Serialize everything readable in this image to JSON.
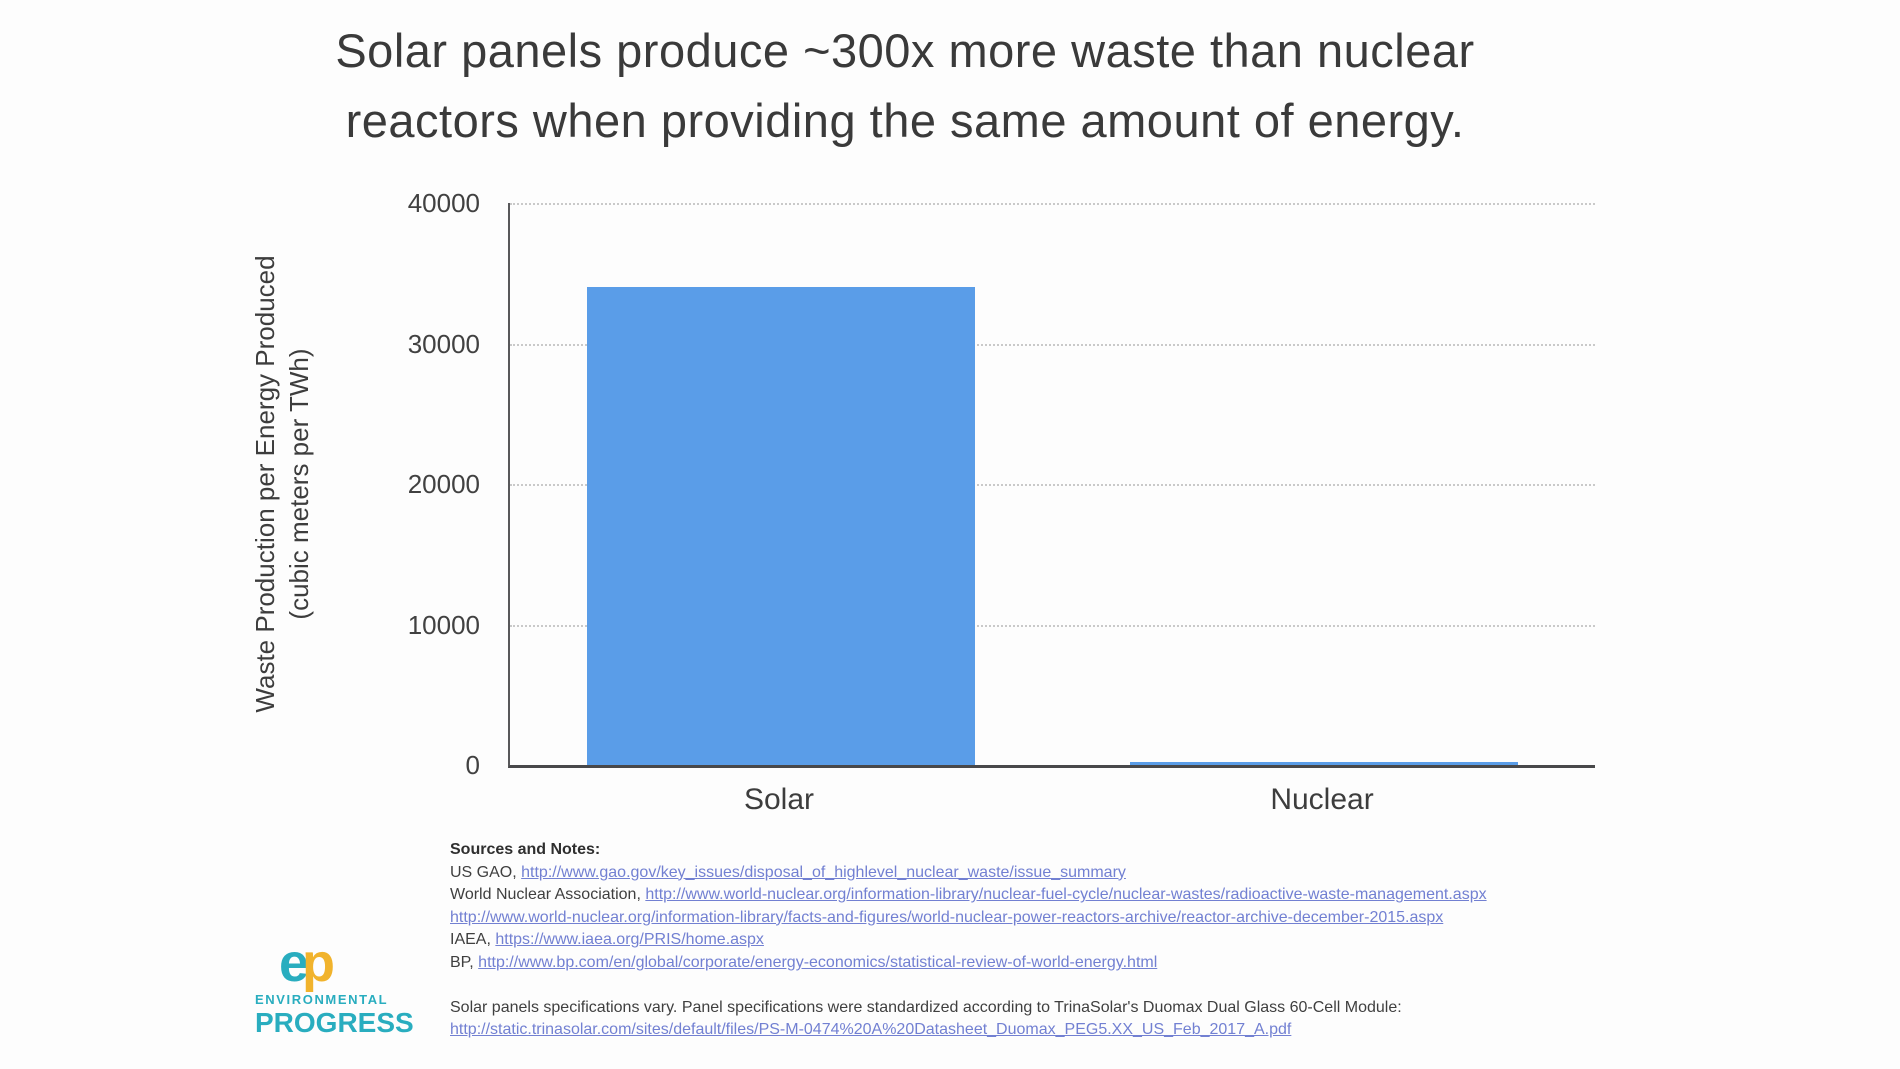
{
  "title": {
    "line1": "Solar panels produce ~300x more waste than nuclear",
    "line2": "reactors when providing the same amount of energy."
  },
  "chart_data": {
    "type": "bar",
    "title": "Solar panels produce ~300x more waste than nuclear reactors when providing the same amount of energy.",
    "categories": [
      "Solar",
      "Nuclear"
    ],
    "values": [
      34000,
      110
    ],
    "xlabel": "",
    "ylabel": "Waste Production per Energy Produced (cubic meters per TWh)",
    "ylabel_line1": "Waste Production per Energy Produced",
    "ylabel_line2": "(cubic meters per TWh)",
    "ylim": [
      0,
      40000
    ],
    "yticks": [
      0,
      10000,
      20000,
      30000,
      40000
    ],
    "ytick_labels": [
      "0",
      "10000",
      "20000",
      "30000",
      "40000"
    ],
    "grid": "horizontal-dotted",
    "legend_position": "none",
    "bar_color": "#5a9de8"
  },
  "sources": {
    "heading": "Sources and Notes:",
    "lines": [
      {
        "prefix": "US GAO, ",
        "link": "http://www.gao.gov/key_issues/disposal_of_highlevel_nuclear_waste/issue_summary"
      },
      {
        "prefix": "World Nuclear Association, ",
        "link": "http://www.world-nuclear.org/information-library/nuclear-fuel-cycle/nuclear-wastes/radioactive-waste-management.aspx"
      },
      {
        "prefix": "",
        "link": "http://www.world-nuclear.org/information-library/facts-and-figures/world-nuclear-power-reactors-archive/reactor-archive-december-2015.aspx"
      },
      {
        "prefix": "IAEA, ",
        "link": "https://www.iaea.org/PRIS/home.aspx"
      },
      {
        "prefix": "BP, ",
        "link": "http://www.bp.com/en/global/corporate/energy-economics/statistical-review-of-world-energy.html"
      }
    ],
    "note": "Solar panels specifications vary. Panel specifications were standardized according to TrinaSolar's Duomax Dual Glass 60-Cell Module:",
    "note_link": "http://static.trinasolar.com/sites/default/files/PS-M-0474%20A%20Datasheet_Duomax_PEG5.XX_US_Feb_2017_A.pdf"
  },
  "logo": {
    "monogram_e": "e",
    "monogram_p": "p",
    "line1": "ENVIRONMENTAL",
    "line2": "PROGRESS",
    "teal": "#29adbf",
    "gold": "#f1b32c"
  }
}
